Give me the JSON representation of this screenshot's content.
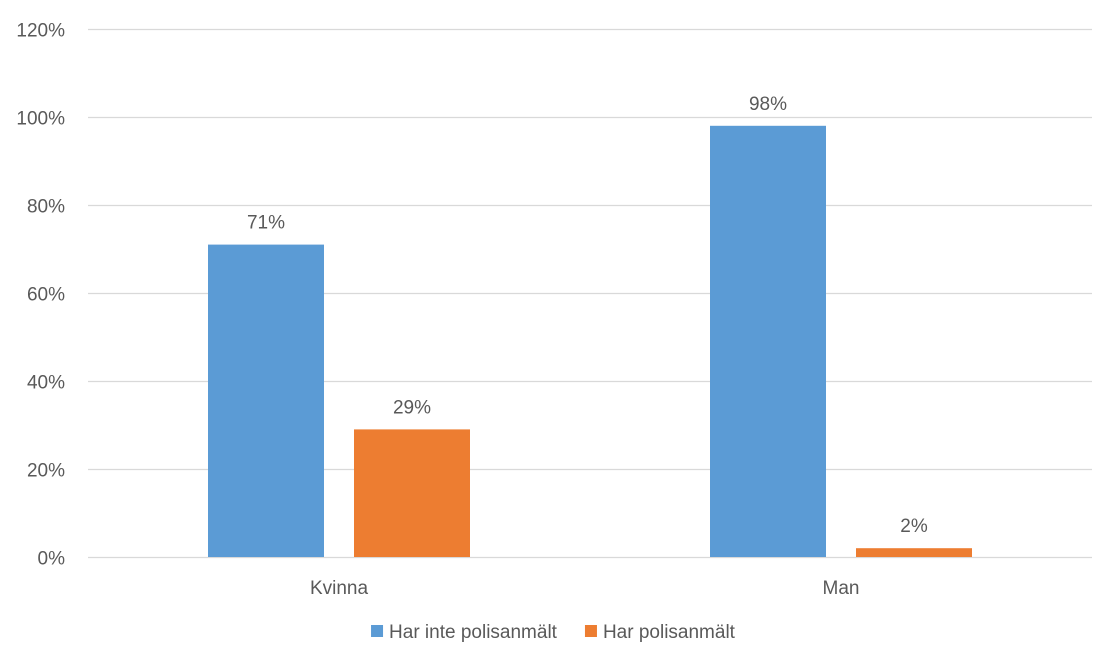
{
  "chart_data": {
    "type": "bar",
    "title": "",
    "xlabel": "",
    "ylabel": "",
    "categories": [
      "Kvinna",
      "Man"
    ],
    "series": [
      {
        "name": "Har inte polisanmält",
        "values": [
          71,
          98
        ],
        "labels": [
          "71%",
          "98%"
        ],
        "color": "#5B9BD5"
      },
      {
        "name": "Har polisanmält",
        "values": [
          29,
          2
        ],
        "labels": [
          "29%",
          "2%"
        ],
        "color": "#ED7D31"
      }
    ],
    "ylim": [
      0,
      120
    ],
    "yticks": [
      0,
      20,
      40,
      60,
      80,
      100,
      120
    ],
    "ytick_labels": [
      "0%",
      "20%",
      "40%",
      "60%",
      "80%",
      "100%",
      "120%"
    ],
    "grid": true,
    "legend_position": "bottom",
    "colors": {
      "gridline": "#D9D9D9",
      "text": "#595959"
    }
  }
}
